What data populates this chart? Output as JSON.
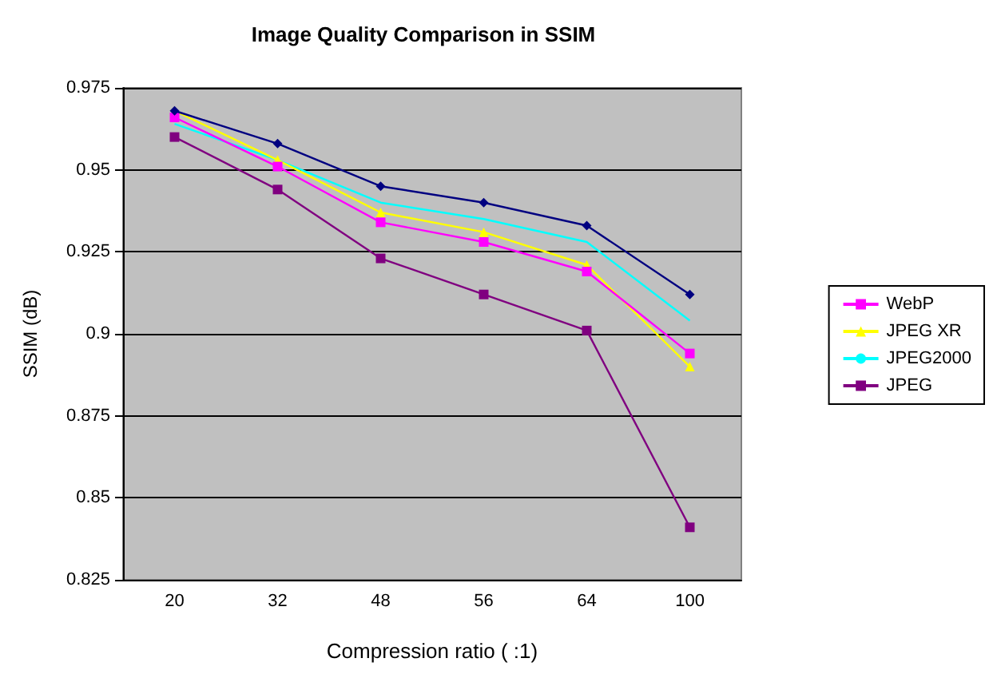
{
  "chart_data": {
    "type": "line",
    "title": "Image Quality Comparison in SSIM",
    "xlabel": "Compression ratio ( :1)",
    "ylabel": "SSIM (dB)",
    "categories": [
      "20",
      "32",
      "48",
      "56",
      "64",
      "100"
    ],
    "series": [
      {
        "color": "#000080",
        "marker": "diamond",
        "values": [
          0.968,
          0.958,
          0.945,
          0.94,
          0.933,
          0.912
        ]
      },
      {
        "name": "WebP",
        "color": "#ff00ff",
        "marker": "square",
        "values": [
          0.966,
          0.951,
          0.934,
          0.928,
          0.919,
          0.894
        ]
      },
      {
        "name": "JPEG XR",
        "color": "#ffff00",
        "marker": "triangle",
        "values": [
          0.968,
          0.953,
          0.937,
          0.931,
          0.921,
          0.89
        ]
      },
      {
        "name": "JPEG2000",
        "color": "#00ffff",
        "marker": "none",
        "values": [
          0.964,
          0.953,
          0.94,
          0.935,
          0.928,
          0.904
        ]
      },
      {
        "name": "JPEG",
        "color": "#800080",
        "marker": "square",
        "values": [
          0.96,
          0.944,
          0.923,
          0.912,
          0.901,
          0.841
        ]
      }
    ],
    "ylim": [
      0.825,
      0.975
    ],
    "yticks": [
      0.825,
      0.85,
      0.875,
      0.9,
      0.925,
      0.95,
      0.975
    ],
    "grid": "y",
    "legend": "right"
  }
}
